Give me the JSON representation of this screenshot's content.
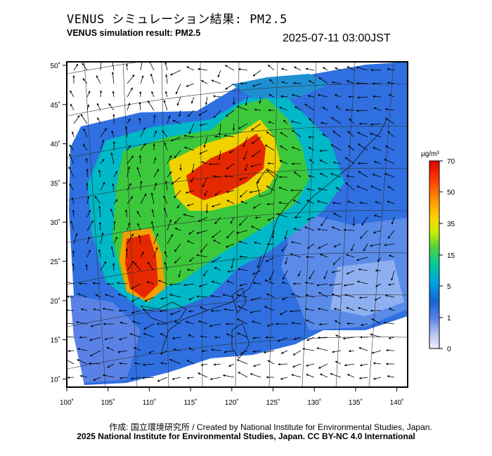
{
  "title": {
    "jp": "VENUS シミュレーション結果: PM2.5",
    "en": "VENUS simulation result: PM2.5",
    "datetime": "2025-07-11 03:00JST"
  },
  "axes": {
    "x_ticks": [
      "100˚",
      "105˚",
      "110˚",
      "115˚",
      "120˚",
      "125˚",
      "130˚",
      "135˚",
      "140˚"
    ],
    "y_ticks": [
      "50˚",
      "45˚",
      "40˚",
      "35˚",
      "30˚",
      "25˚",
      "20˚",
      "15˚",
      "10˚"
    ]
  },
  "colorbar": {
    "unit": "μg/m³",
    "labels": [
      "70",
      "50",
      "35",
      "15",
      "5",
      "1",
      "0"
    ],
    "colors": [
      "#e00000",
      "#ff3c00",
      "#ff8c00",
      "#ffd200",
      "#c8f000",
      "#50d23c",
      "#00c8a0",
      "#00a0e6",
      "#1464d2",
      "#5a82e6",
      "#b4c3f0",
      "#f0f0ff"
    ]
  },
  "footer": {
    "credit": "作成: 国立環境研究所 / Created by National Institute for Environmental Studies, Japan.",
    "copyright": "2025 National Institute for Environmental Studies, Japan. CC BY-NC 4.0 International"
  }
}
